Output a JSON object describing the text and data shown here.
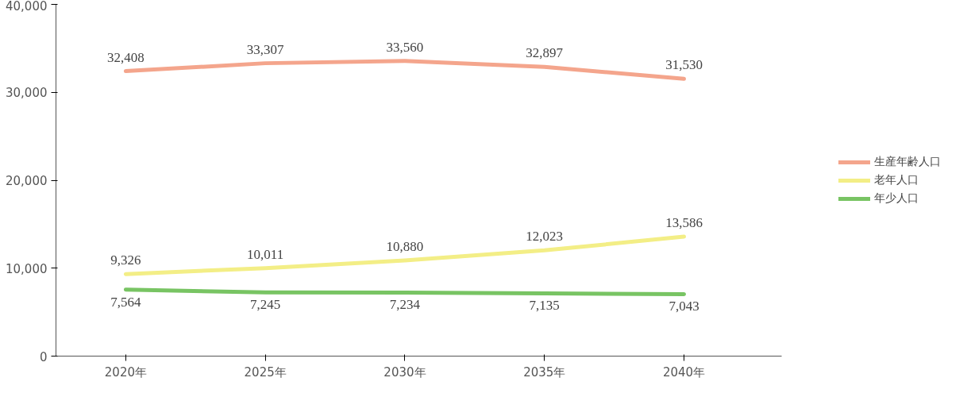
{
  "chart_data": {
    "type": "line",
    "categories": [
      "2020年",
      "2025年",
      "2030年",
      "2035年",
      "2040年"
    ],
    "series": [
      {
        "name": "生産年齢人口",
        "color": "#f4a58c",
        "values": [
          32408,
          33307,
          33560,
          32897,
          31530
        ],
        "value_labels": [
          "32,408",
          "33,307",
          "33,560",
          "32,897",
          "31,530"
        ]
      },
      {
        "name": "老年人口",
        "color": "#f3ee86",
        "values": [
          9326,
          10011,
          10880,
          12023,
          13586
        ],
        "value_labels": [
          "9,326",
          "10,011",
          "10,880",
          "12,023",
          "13,586"
        ]
      },
      {
        "name": "年少人口",
        "color": "#78c463",
        "values": [
          7564,
          7245,
          7234,
          7135,
          7043
        ],
        "value_labels": [
          "7,564",
          "7,245",
          "7,234",
          "7,135",
          "7,043"
        ]
      }
    ],
    "ylim": [
      0,
      40000
    ],
    "yticks": [
      {
        "value": 0,
        "label": "0"
      },
      {
        "value": 10000,
        "label": "10,000"
      },
      {
        "value": 20000,
        "label": "20,000"
      },
      {
        "value": 30000,
        "label": "30,000"
      },
      {
        "value": 40000,
        "label": "40,000"
      }
    ],
    "legend": "right",
    "grid": false,
    "marker": "none",
    "line_style": "solid"
  }
}
